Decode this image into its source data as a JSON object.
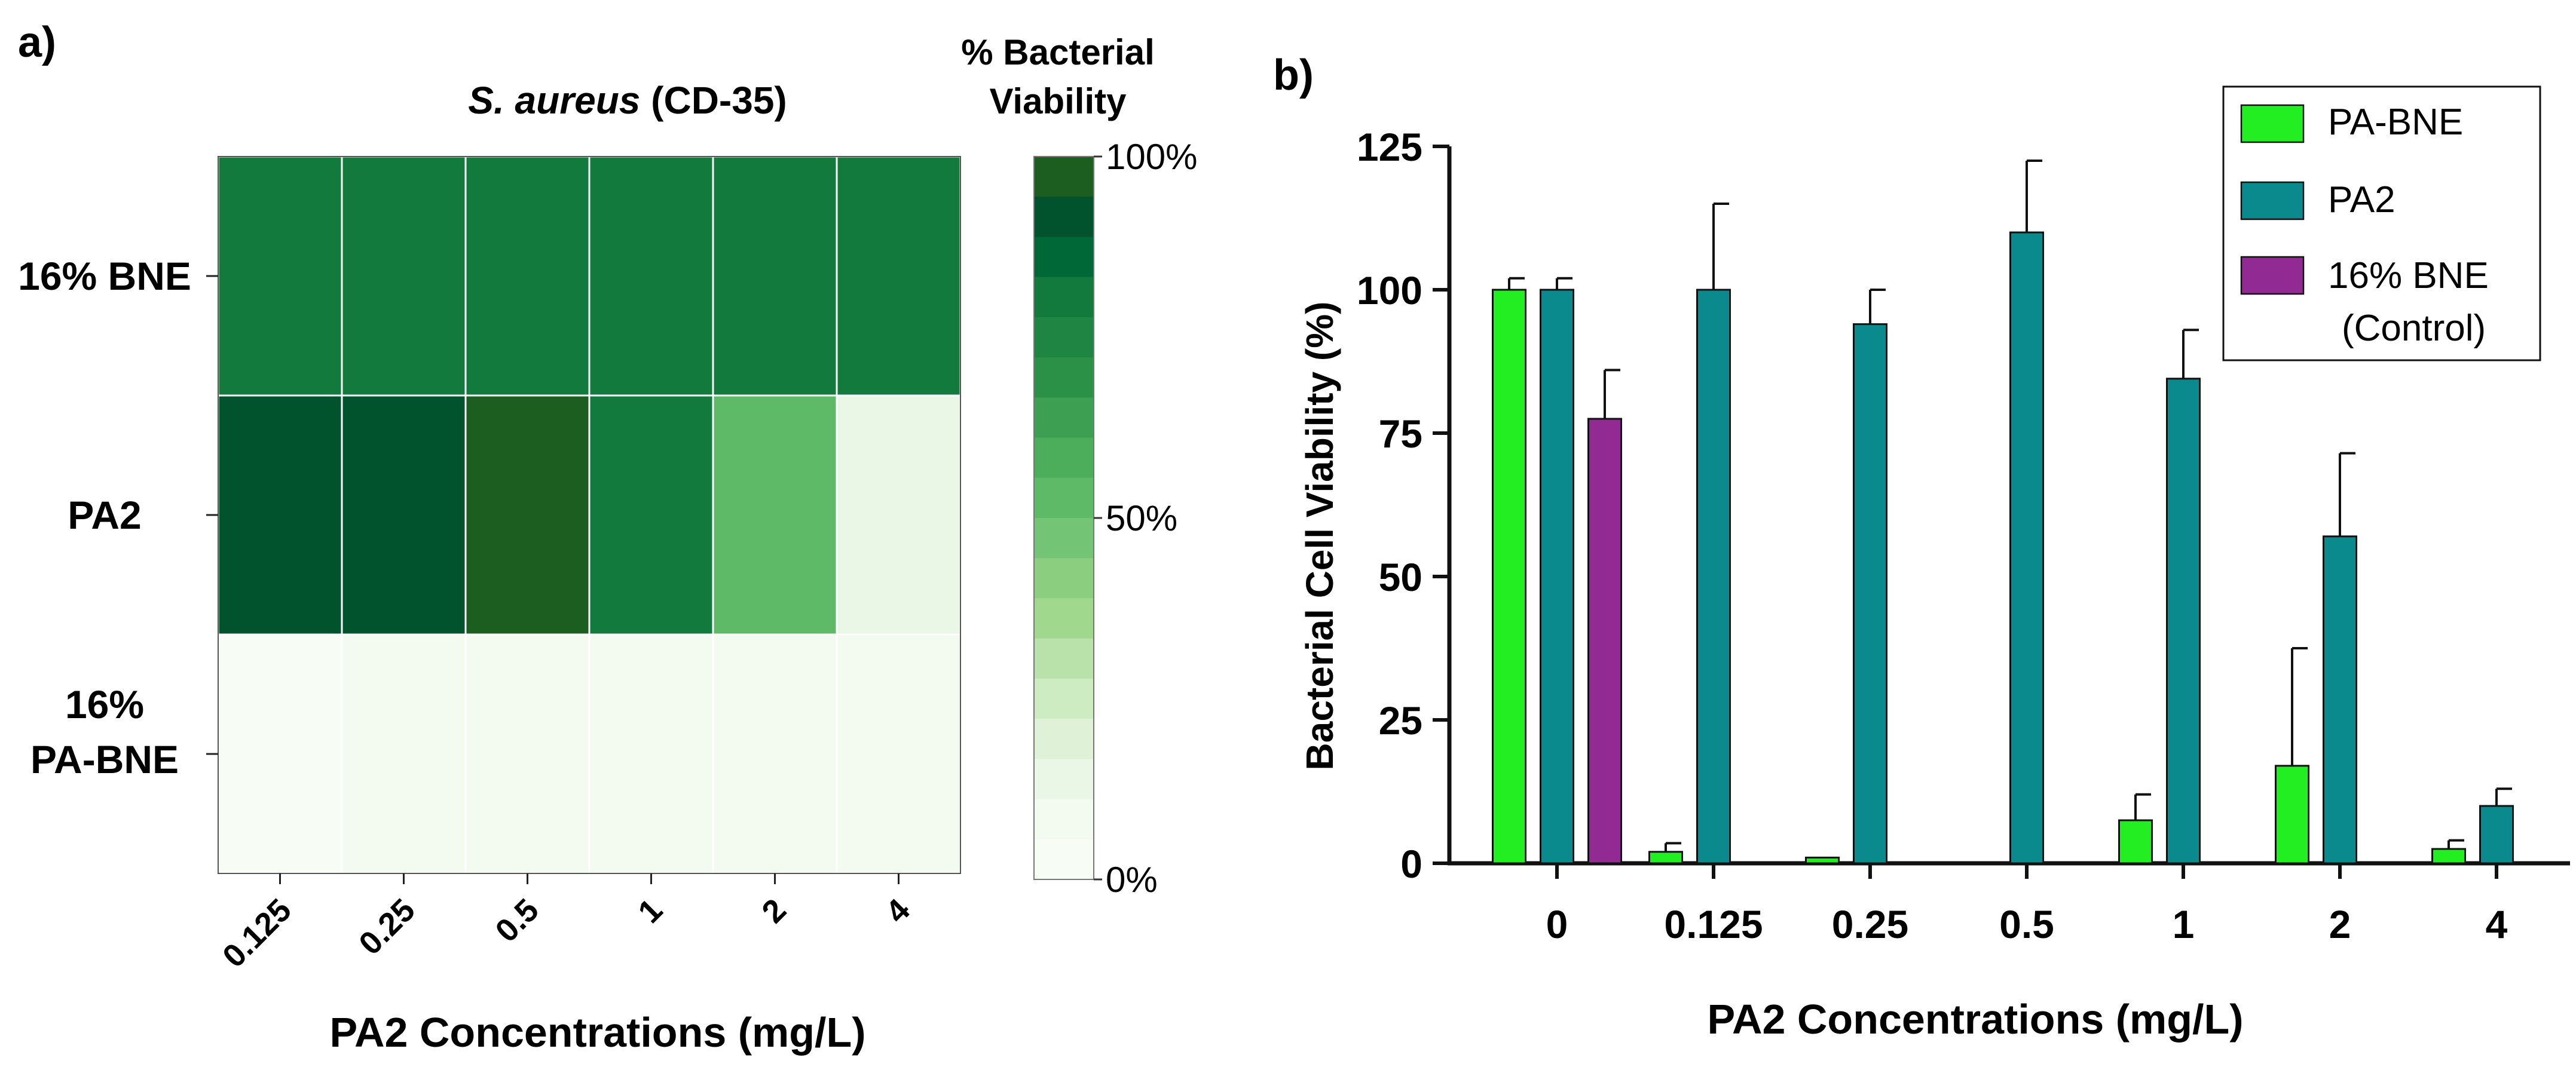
{
  "panel_a": {
    "label": "a)",
    "title_italic": "S. aureus",
    "title_rest": " (CD-35)",
    "colorbar_title_line1": "% Bacterial",
    "colorbar_title_line2": "Viability",
    "colorbar_ticks": [
      "100%",
      "50%",
      "0%"
    ],
    "colorbar_colors": [
      "#1b5e20",
      "#00532c",
      "#006837",
      "#127a3c",
      "#1e8642",
      "#2a9147",
      "#3d9f51",
      "#4cae5b",
      "#5fba67",
      "#73c475",
      "#8bce7f",
      "#a0d88d",
      "#b8e2aa",
      "#cdecc2",
      "#dff2d7",
      "#ebf7e6",
      "#f3faef",
      "#f7fcf5"
    ],
    "xlabel": "PA2 Concentrations (mg/L)"
  },
  "panel_b": {
    "label": "b)",
    "legend": [
      {
        "label_line1": "PA-BNE",
        "label_line2": "",
        "color": "#22ee22"
      },
      {
        "label_line1": "PA2",
        "label_line2": "",
        "color": "#0a8a8c"
      },
      {
        "label_line1": "16% BNE",
        "label_line2": "(Control)",
        "color": "#912a92"
      }
    ]
  },
  "chart_data": [
    {
      "type": "heatmap",
      "title": "S. aureus (CD-35)",
      "xlabel": "PA2 Concentrations (mg/L)",
      "ylabel": "",
      "x_categories": [
        "0.125",
        "0.25",
        "0.5",
        "1",
        "2",
        "4"
      ],
      "y_categories": [
        "16% BNE",
        "PA2",
        "16% PA-BNE"
      ],
      "values": [
        [
          80,
          80,
          80,
          80,
          80,
          80
        ],
        [
          95,
          95,
          105,
          85,
          52,
          10
        ],
        [
          2,
          3,
          3,
          6,
          8,
          4
        ]
      ],
      "colorbar_range": [
        0,
        100
      ],
      "colorbar_label": "% Bacterial Viability"
    },
    {
      "type": "bar",
      "title": "",
      "xlabel": "PA2 Concentrations (mg/L)",
      "ylabel": "Bacterial Cell  Viability (%)",
      "ylim": [
        0,
        125
      ],
      "yticks": [
        "0",
        "25",
        "50",
        "75",
        "100",
        "125"
      ],
      "categories": [
        "0",
        "0.125",
        "0.25",
        "0.5",
        "1",
        "2",
        "4"
      ],
      "series": [
        {
          "name": "PA-BNE",
          "values": [
            100,
            2,
            1,
            0,
            7.5,
            17,
            2.5
          ],
          "errors": [
            2,
            1.5,
            0,
            0,
            4.5,
            20.5,
            1.5
          ]
        },
        {
          "name": "PA2",
          "values": [
            100,
            100,
            94,
            110,
            84.5,
            57,
            10
          ],
          "errors": [
            2,
            15,
            6,
            12.5,
            8.5,
            14.5,
            3
          ]
        },
        {
          "name": "16% BNE (Control)",
          "values": [
            77.5,
            null,
            null,
            null,
            null,
            null,
            null
          ],
          "errors": [
            8.5,
            null,
            null,
            null,
            null,
            null,
            null
          ]
        }
      ]
    }
  ]
}
